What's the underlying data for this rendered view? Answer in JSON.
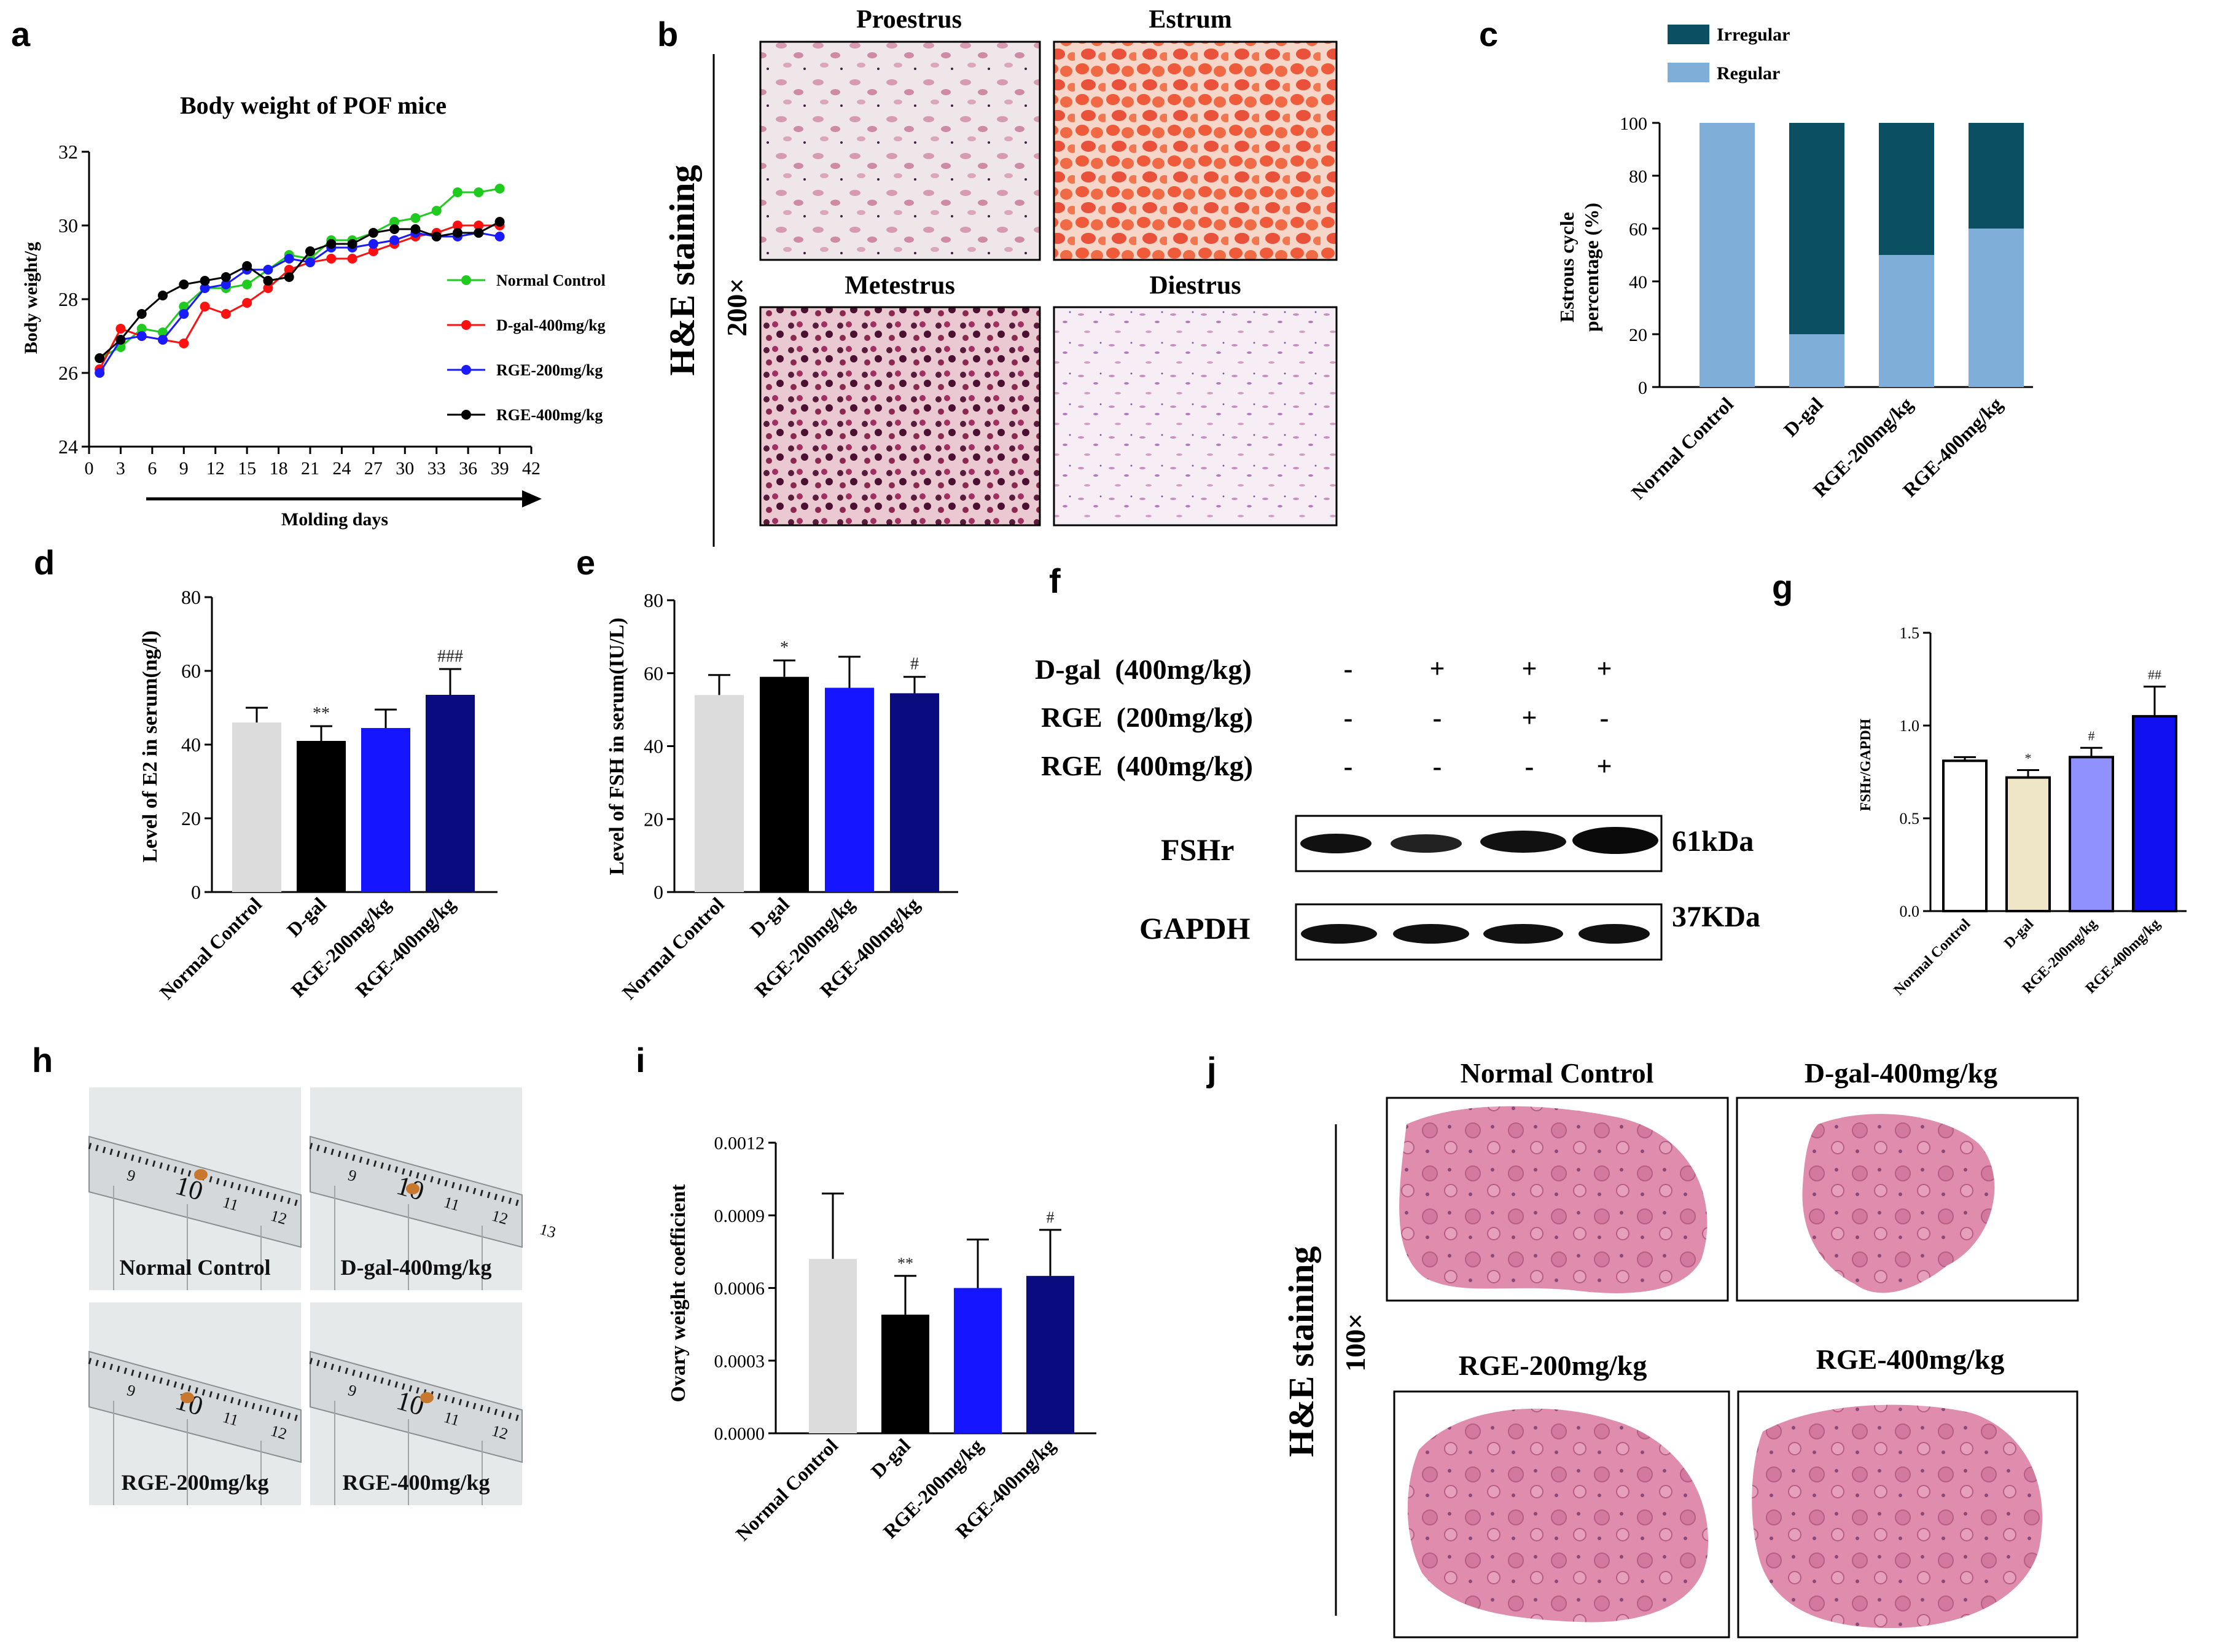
{
  "panel_letters": [
    "a",
    "b",
    "c",
    "d",
    "e",
    "f",
    "g",
    "h",
    "i",
    "j"
  ],
  "colors": {
    "normal": "#dcdcdc",
    "dgal": "#000000",
    "rge200": "#1515ff",
    "rge400": "#0b0b80",
    "irregular": "#0b4f63",
    "regular": "#7fafd9",
    "line_normal": "#1ecb1e",
    "line_dgal": "#ff1010",
    "line_rge200": "#1a1aff",
    "line_rge400": "#000000",
    "g_normal": "#ffffff",
    "g_dgal": "#efe6c8",
    "g_rge200": "#9090ff",
    "g_rge400": "#1010f0"
  },
  "chart_data": [
    {
      "id": "a",
      "type": "line",
      "title": "Body weight of  POF mice",
      "xlabel": "Molding days",
      "ylabel": "Body weight/g",
      "xlim": [
        0,
        42
      ],
      "ylim": [
        24,
        32
      ],
      "xticks": [
        0,
        3,
        6,
        9,
        12,
        15,
        18,
        21,
        24,
        27,
        30,
        33,
        36,
        39,
        42
      ],
      "yticks": [
        24,
        26,
        28,
        30,
        32
      ],
      "x": [
        1,
        3,
        5,
        7,
        9,
        11,
        13,
        15,
        17,
        19,
        21,
        23,
        25,
        27,
        29,
        31,
        33,
        35,
        37,
        39
      ],
      "series": [
        {
          "name": "Normal Control",
          "values": [
            26.4,
            26.7,
            27.2,
            27.1,
            27.8,
            28.3,
            28.3,
            28.4,
            28.8,
            29.2,
            29.1,
            29.6,
            29.6,
            29.8,
            30.1,
            30.2,
            30.4,
            30.9,
            30.9,
            31.0
          ]
        },
        {
          "name": "D-gal-400mg/kg",
          "values": [
            26.1,
            27.2,
            27.0,
            26.9,
            26.8,
            27.8,
            27.6,
            27.9,
            28.3,
            28.8,
            29.0,
            29.1,
            29.1,
            29.3,
            29.5,
            29.7,
            29.8,
            30.0,
            30.0,
            30.0
          ]
        },
        {
          "name": "RGE-200mg/kg",
          "values": [
            26.0,
            26.9,
            27.0,
            26.9,
            27.6,
            28.3,
            28.4,
            28.8,
            28.8,
            29.1,
            29.0,
            29.4,
            29.4,
            29.5,
            29.6,
            29.8,
            29.7,
            29.7,
            29.8,
            29.7
          ]
        },
        {
          "name": "RGE-400mg/kg",
          "values": [
            26.4,
            26.9,
            27.6,
            28.1,
            28.4,
            28.5,
            28.6,
            28.9,
            28.5,
            28.6,
            29.3,
            29.5,
            29.5,
            29.8,
            29.9,
            29.9,
            29.7,
            29.8,
            29.8,
            30.1
          ]
        }
      ]
    },
    {
      "id": "c",
      "type": "bar",
      "ylabel_lines": [
        "Estrous cycle",
        "percentage (%)"
      ],
      "ylim": [
        0,
        100
      ],
      "yticks": [
        0,
        20,
        40,
        60,
        80,
        100
      ],
      "categories": [
        "Normal Control",
        "D-gal",
        "RGE-200mg/kg",
        "RGE-400mg/kg"
      ],
      "series": [
        {
          "name": "Irregular",
          "values": [
            0,
            80,
            50,
            40
          ]
        },
        {
          "name": "Regular",
          "values": [
            100,
            20,
            50,
            60
          ]
        }
      ]
    },
    {
      "id": "d",
      "type": "bar",
      "ylabel": "Level of E2 in serum(ng/l)",
      "ylim": [
        0,
        80
      ],
      "yticks": [
        0,
        20,
        40,
        60,
        80
      ],
      "categories": [
        "Normal Control",
        "D-gal",
        "RGE-200mg/kg",
        "RGE-400mg/kg"
      ],
      "values": [
        46,
        41,
        44.5,
        53.5
      ],
      "errors": [
        4,
        4,
        5,
        7
      ],
      "annotations": [
        "",
        "**",
        "",
        "###"
      ]
    },
    {
      "id": "e",
      "type": "bar",
      "ylabel": "Level of FSH in serum(IU/L)",
      "ylim": [
        0,
        80
      ],
      "yticks": [
        0,
        20,
        40,
        60,
        80
      ],
      "categories": [
        "Normal Control",
        "D-gal",
        "RGE-200mg/kg",
        "RGE-400mg/kg"
      ],
      "values": [
        54,
        59,
        56,
        54.5
      ],
      "errors": [
        5.5,
        4.5,
        8.5,
        4.5
      ],
      "annotations": [
        "",
        "*",
        "",
        "#"
      ]
    },
    {
      "id": "g",
      "type": "bar",
      "ylabel": "FSHr/GAPDH",
      "ylim": [
        0,
        1.5
      ],
      "yticks": [
        "0.0",
        "0.5",
        "1.0",
        "1.5"
      ],
      "categories": [
        "Normal Control",
        "D-gal",
        "RGE-200mg/kg",
        "RGE-400mg/kg"
      ],
      "values": [
        0.81,
        0.72,
        0.83,
        1.05
      ],
      "errors": [
        0.02,
        0.04,
        0.05,
        0.16
      ],
      "annotations": [
        "",
        "*",
        "#",
        "##"
      ]
    },
    {
      "id": "i",
      "type": "bar",
      "ylabel": "Ovary weight coefficient",
      "ylim": [
        0,
        0.0012
      ],
      "yticks": [
        "0.0000",
        "0.0003",
        "0.0006",
        "0.0009",
        "0.0012"
      ],
      "categories": [
        "Normal Control",
        "D-gal",
        "RGE-200mg/kg",
        "RGE-400mg/kg"
      ],
      "values": [
        0.00072,
        0.00049,
        0.0006,
        0.00065
      ],
      "errors": [
        0.00027,
        0.00016,
        0.0002,
        0.00019
      ],
      "annotations": [
        "",
        "**",
        "",
        "#"
      ]
    }
  ],
  "panel_b": {
    "side_label": "H&E staining",
    "magnification": "200×",
    "stages": [
      "Proestrus",
      "Estrum",
      "Metestrus",
      "Diestrus"
    ]
  },
  "panel_f": {
    "conditions": [
      {
        "label": "D-gal  (400mg/kg)",
        "marks": [
          "-",
          "+",
          "+",
          "+"
        ]
      },
      {
        "label": "RGE  (200mg/kg)",
        "marks": [
          "-",
          "-",
          "+",
          "-"
        ]
      },
      {
        "label": "RGE  (400mg/kg)",
        "marks": [
          "-",
          "-",
          "-",
          "+"
        ]
      }
    ],
    "bands": [
      {
        "name": "FSHr",
        "size": "61kDa"
      },
      {
        "name": "GAPDH",
        "size": "37KDa"
      }
    ]
  },
  "panel_h": {
    "photos": [
      "Normal Control",
      "D-gal-400mg/kg",
      "RGE-200mg/kg",
      "RGE-400mg/kg"
    ],
    "ruler_numbers": [
      [
        "9",
        "10",
        "11",
        "12"
      ],
      [
        "9",
        "10",
        "11",
        "12",
        "13"
      ],
      [
        "9",
        "10",
        "11",
        "12"
      ],
      [
        "9",
        "10",
        "11",
        "12"
      ]
    ]
  },
  "panel_j": {
    "side_label": "H&E staining",
    "magnification": "100×",
    "sections": [
      "Normal Control",
      "D-gal-400mg/kg",
      "RGE-200mg/kg",
      "RGE-400mg/kg"
    ]
  }
}
